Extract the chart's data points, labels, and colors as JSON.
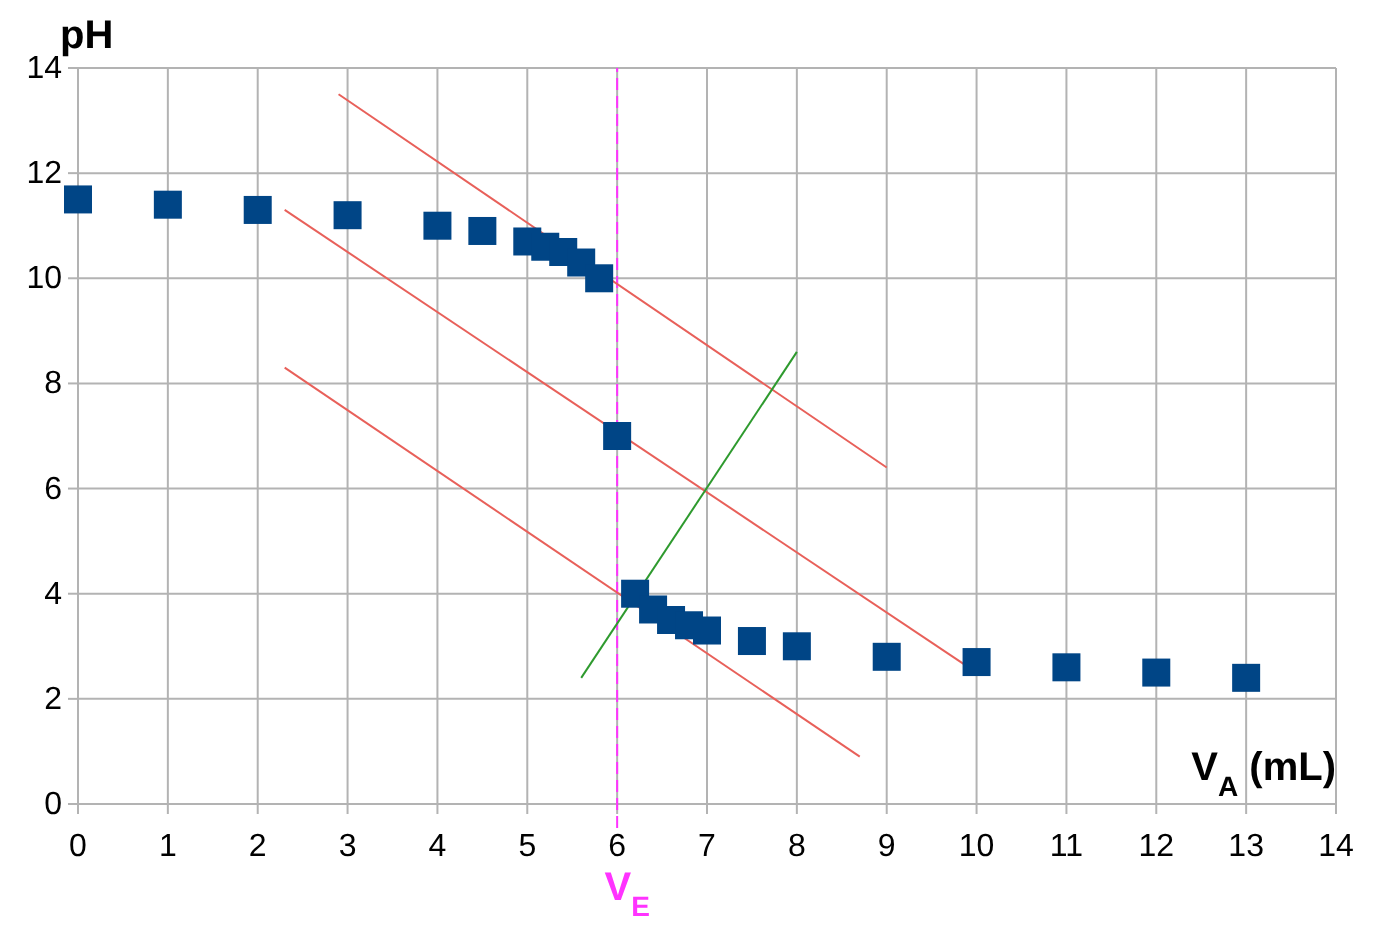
{
  "chart_data": {
    "type": "scatter",
    "xlabel": "V$_{A}$ (mL)",
    "ylabel": "pH",
    "xlim": [
      0,
      14
    ],
    "xticks": [
      0,
      1,
      2,
      3,
      4,
      5,
      6,
      7,
      8,
      9,
      10,
      11,
      12,
      13,
      14
    ],
    "ylim": [
      0,
      14
    ],
    "yticks": [
      0,
      2,
      4,
      6,
      8,
      10,
      12,
      14
    ],
    "grid": true,
    "marker": "square",
    "series": [
      {
        "color": "#004586",
        "x": [
          0,
          1,
          2,
          3,
          4,
          4.5,
          5,
          5.2,
          5.4,
          5.6,
          5.8,
          6,
          6.2,
          6.4,
          6.6,
          6.8,
          7,
          7.5,
          8,
          9,
          10,
          11,
          12,
          13
        ],
        "values": [
          11.5,
          11.4,
          11.3,
          11.2,
          11.0,
          10.9,
          10.7,
          10.6,
          10.5,
          10.3,
          10.0,
          7.0,
          4.0,
          3.7,
          3.5,
          3.4,
          3.3,
          3.1,
          3.0,
          2.8,
          2.7,
          2.6,
          2.5,
          2.4
        ]
      },
      {
        "type": "line",
        "color": "#e8605a",
        "marker": "none",
        "x": [
          2.9,
          9.0
        ],
        "values": [
          13.5,
          6.4
        ]
      },
      {
        "type": "line",
        "color": "#e8605a",
        "marker": "none",
        "x": [
          2.3,
          10.0
        ],
        "values": [
          11.3,
          2.5
        ]
      },
      {
        "type": "line",
        "color": "#e8605a",
        "marker": "none",
        "x": [
          2.3,
          8.7
        ],
        "values": [
          8.3,
          0.9
        ]
      },
      {
        "type": "line",
        "color": "#2e9a2e",
        "marker": "none",
        "x": [
          5.6,
          8.0
        ],
        "values": [
          2.4,
          8.6
        ]
      }
    ],
    "ref_lines": [
      {
        "axis": "x",
        "value": 6,
        "label": "V$_{E}$",
        "color": "#ff33ff",
        "line_style": "dashed"
      }
    ]
  }
}
